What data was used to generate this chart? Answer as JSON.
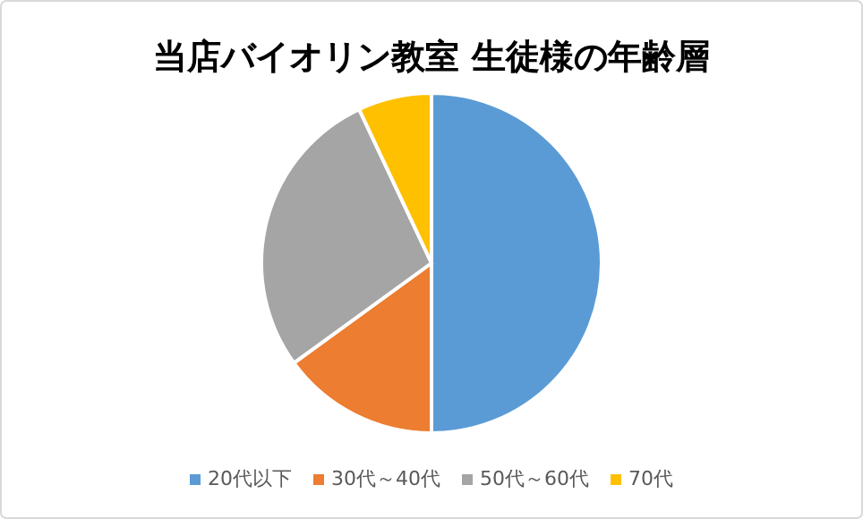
{
  "chart_data": {
    "type": "pie",
    "title": "当店バイオリン教室 生徒様の年齢層",
    "categories": [
      "20代以下",
      "30代～40代",
      "50代～60代",
      "70代"
    ],
    "values": [
      50,
      15,
      28,
      7
    ],
    "colors": [
      "#5b9bd5",
      "#ed7d31",
      "#a5a5a5",
      "#ffc000"
    ],
    "legend": "bottom"
  }
}
